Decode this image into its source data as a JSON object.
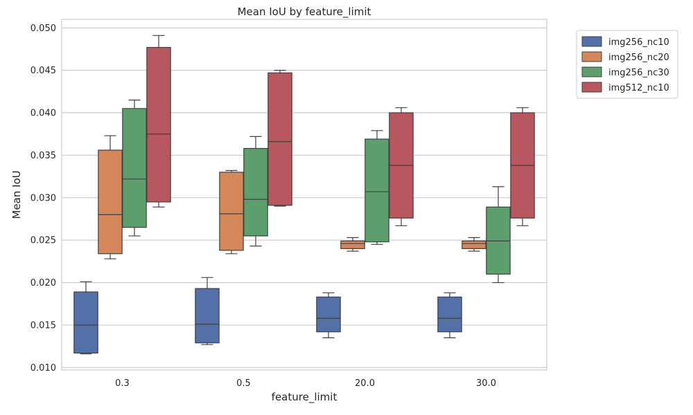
{
  "chart_data": {
    "type": "box",
    "title": "Mean IoU by feature_limit",
    "xlabel": "feature_limit",
    "ylabel": "Mean IoU",
    "categories": [
      "0.3",
      "0.5",
      "20.0",
      "30.0"
    ],
    "ylim": [
      0.0097,
      0.051
    ],
    "yticks": [
      0.01,
      0.015,
      0.02,
      0.025,
      0.03,
      0.035,
      0.04,
      0.045,
      0.05
    ],
    "ytick_labels": [
      "0.010",
      "0.015",
      "0.020",
      "0.025",
      "0.030",
      "0.035",
      "0.040",
      "0.045",
      "0.050"
    ],
    "grid": true,
    "legend_position": "outside-top-right",
    "series": [
      {
        "name": "img256_nc10",
        "color": "#5470a9",
        "boxes": [
          {
            "whisker_low": 0.0116,
            "q1": 0.0117,
            "median": 0.015,
            "q3": 0.0189,
            "whisker_high": 0.0201
          },
          {
            "whisker_low": 0.0127,
            "q1": 0.0129,
            "median": 0.0151,
            "q3": 0.0193,
            "whisker_high": 0.0206
          },
          {
            "whisker_low": 0.0135,
            "q1": 0.0142,
            "median": 0.0158,
            "q3": 0.0183,
            "whisker_high": 0.0188
          },
          {
            "whisker_low": 0.0135,
            "q1": 0.0142,
            "median": 0.0158,
            "q3": 0.0183,
            "whisker_high": 0.0188
          }
        ]
      },
      {
        "name": "img256_nc20",
        "color": "#d4875a",
        "boxes": [
          {
            "whisker_low": 0.0228,
            "q1": 0.0234,
            "median": 0.028,
            "q3": 0.0356,
            "whisker_high": 0.0373
          },
          {
            "whisker_low": 0.0234,
            "q1": 0.0238,
            "median": 0.0281,
            "q3": 0.033,
            "whisker_high": 0.0332
          },
          {
            "whisker_low": 0.0237,
            "q1": 0.024,
            "median": 0.0246,
            "q3": 0.0249,
            "whisker_high": 0.0253
          },
          {
            "whisker_low": 0.0237,
            "q1": 0.024,
            "median": 0.0246,
            "q3": 0.0249,
            "whisker_high": 0.0253
          }
        ]
      },
      {
        "name": "img256_nc30",
        "color": "#5c9f6c",
        "boxes": [
          {
            "whisker_low": 0.0255,
            "q1": 0.0265,
            "median": 0.0322,
            "q3": 0.0405,
            "whisker_high": 0.0415
          },
          {
            "whisker_low": 0.0243,
            "q1": 0.0255,
            "median": 0.0298,
            "q3": 0.0358,
            "whisker_high": 0.0372
          },
          {
            "whisker_low": 0.0245,
            "q1": 0.0248,
            "median": 0.0307,
            "q3": 0.0369,
            "whisker_high": 0.0379
          },
          {
            "whisker_low": 0.02,
            "q1": 0.021,
            "median": 0.0249,
            "q3": 0.0289,
            "whisker_high": 0.0313
          }
        ]
      },
      {
        "name": "img512_nc10",
        "color": "#b85760",
        "boxes": [
          {
            "whisker_low": 0.0289,
            "q1": 0.0295,
            "median": 0.0375,
            "q3": 0.0477,
            "whisker_high": 0.0491
          },
          {
            "whisker_low": 0.029,
            "q1": 0.0291,
            "median": 0.0366,
            "q3": 0.0447,
            "whisker_high": 0.045
          },
          {
            "whisker_low": 0.0267,
            "q1": 0.0276,
            "median": 0.0338,
            "q3": 0.04,
            "whisker_high": 0.0406
          },
          {
            "whisker_low": 0.0267,
            "q1": 0.0276,
            "median": 0.0338,
            "q3": 0.04,
            "whisker_high": 0.0406
          }
        ]
      }
    ]
  }
}
